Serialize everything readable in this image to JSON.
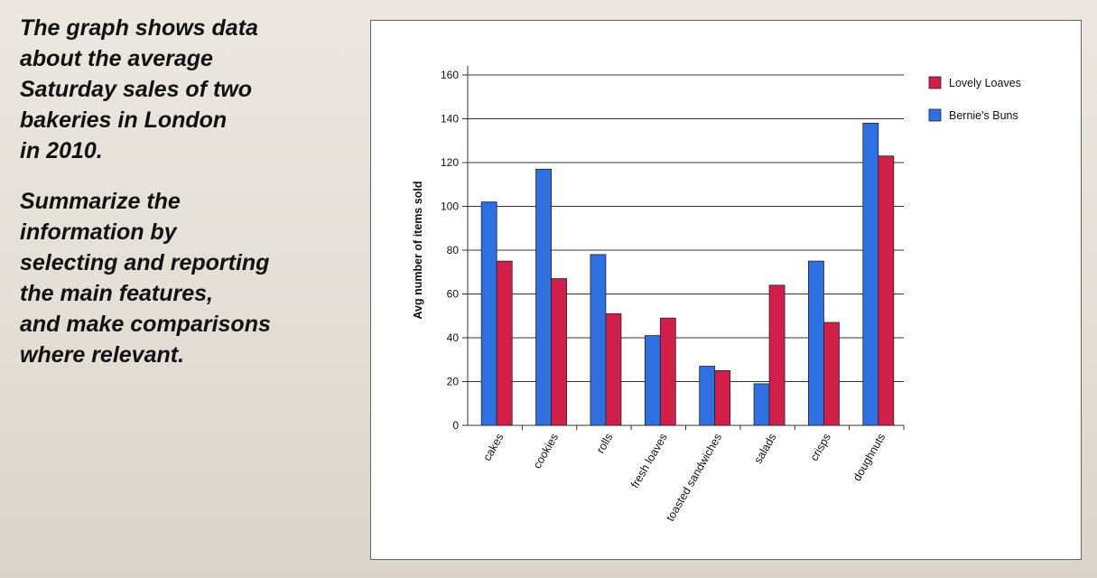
{
  "prompt": {
    "paragraph1": "The graph shows data\nabout the average\nSaturday sales of two\nbakeries in London\nin 2010.",
    "paragraph2": "Summarize the\ninformation by\nselecting and reporting\nthe main features,\nand make comparisons\nwhere relevant."
  },
  "chart_data": {
    "type": "bar",
    "title": "",
    "xlabel": "",
    "ylabel": "Avg number of items sold",
    "ylim": [
      0,
      160
    ],
    "yticks": [
      "0",
      "20",
      "40",
      "60",
      "80",
      "100",
      "120",
      "140",
      "160"
    ],
    "grid": true,
    "legend_position": "top-right",
    "categories": [
      "cakes",
      "cookies",
      "rolls",
      "fresh loaves",
      "toasted sandwiches",
      "salads",
      "crisps",
      "doughnuts"
    ],
    "series": [
      {
        "name": "Bernie's Buns",
        "color": "#2f6fe0",
        "values": [
          102,
          117,
          78,
          41,
          27,
          19,
          75,
          138
        ]
      },
      {
        "name": "Lovely Loaves",
        "color": "#d0204a",
        "values": [
          75,
          67,
          51,
          49,
          25,
          64,
          47,
          123
        ]
      }
    ],
    "legend": [
      {
        "name": "Lovely Loaves",
        "color": "#d0204a"
      },
      {
        "name": "Bernie's Buns",
        "color": "#2f6fe0"
      }
    ]
  }
}
